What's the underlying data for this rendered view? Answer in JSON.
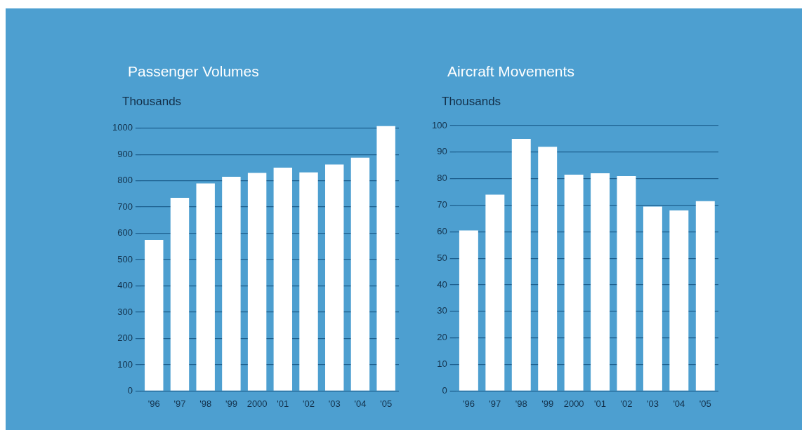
{
  "chart_data": [
    {
      "type": "bar",
      "title": "Passenger Volumes",
      "ylabel": "Thousands",
      "categories": [
        "'96",
        "'97",
        "'98",
        "'99",
        "2000",
        "'01",
        "'02",
        "'03",
        "'04",
        "'05"
      ],
      "values": [
        575,
        735,
        790,
        815,
        830,
        850,
        832,
        862,
        888,
        1008
      ],
      "color": "#ffffff",
      "ylim": [
        0,
        1010
      ],
      "yticks": [
        0,
        100,
        200,
        300,
        400,
        500,
        600,
        700,
        800,
        900,
        1000
      ],
      "grid": "y",
      "legend": false
    },
    {
      "type": "bar",
      "title": "Aircraft Movements",
      "ylabel": "Thousands",
      "categories": [
        "'96",
        "'97",
        "'98",
        "'99",
        "2000",
        "'01",
        "'02",
        "'03",
        "'04",
        "'05"
      ],
      "values": [
        60.5,
        74,
        95,
        92,
        81.5,
        82,
        81,
        69.5,
        68,
        71.5
      ],
      "color": "#ffffff",
      "ylim": [
        0,
        100
      ],
      "yticks": [
        0,
        10,
        20,
        30,
        40,
        50,
        60,
        70,
        80,
        90,
        100
      ],
      "grid": "y",
      "legend": false
    }
  ]
}
